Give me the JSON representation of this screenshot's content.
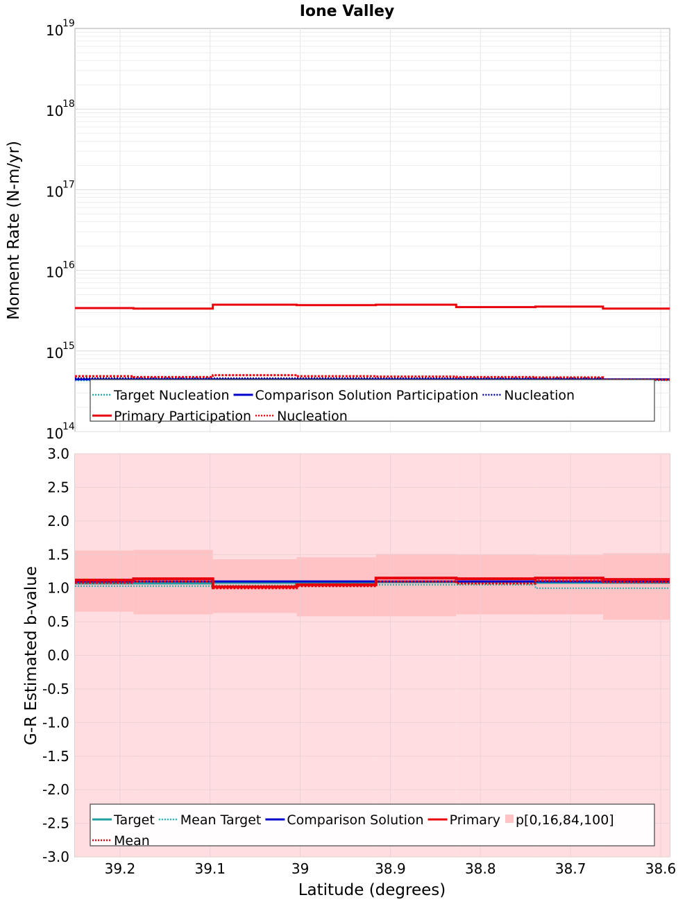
{
  "chart_data": [
    {
      "type": "line",
      "subtype": "step",
      "title": "Ione Valley",
      "xlabel": "",
      "ylabel": "Moment Rate (N-m/yr)",
      "yscale": "log",
      "ylim": [
        100000000000000.0,
        1e+19
      ],
      "xlim": [
        39.25,
        38.59
      ],
      "x_reversed": true,
      "grid": true,
      "y_tick_labels": [
        {
          "base": "10",
          "exp": "14",
          "value": 100000000000000.0
        },
        {
          "base": "10",
          "exp": "15",
          "value": 1000000000000000.0
        },
        {
          "base": "10",
          "exp": "16",
          "value": 1e+16
        },
        {
          "base": "10",
          "exp": "17",
          "value": 1e+17
        },
        {
          "base": "10",
          "exp": "18",
          "value": 1e+18
        },
        {
          "base": "10",
          "exp": "19",
          "value": 1e+19
        }
      ],
      "bin_edges": [
        39.25,
        39.185,
        39.097,
        39.004,
        38.916,
        38.827,
        38.739,
        38.664,
        38.59
      ],
      "series": [
        {
          "name": "Target Nucleation",
          "color": "#20b2aa",
          "style": "dotted",
          "width": 2,
          "values": [
            430000000000000.0,
            430000000000000.0,
            430000000000000.0,
            430000000000000.0,
            430000000000000.0,
            430000000000000.0,
            430000000000000.0,
            430000000000000.0
          ]
        },
        {
          "name": "Comparison Solution Participation",
          "color": "#0000cc",
          "style": "solid",
          "width": 3,
          "values": [
            445000000000000.0,
            445000000000000.0,
            445000000000000.0,
            445000000000000.0,
            445000000000000.0,
            445000000000000.0,
            445000000000000.0,
            445000000000000.0
          ]
        },
        {
          "name": "Nucleation",
          "color": "#00008b",
          "style": "dotted",
          "width": 2,
          "values": [
            460000000000000.0,
            460000000000000.0,
            460000000000000.0,
            460000000000000.0,
            460000000000000.0,
            460000000000000.0,
            460000000000000.0,
            445000000000000.0
          ]
        },
        {
          "name": "Primary Participation",
          "color": "#e8000b",
          "style": "solid",
          "width": 3,
          "values": [
            3400000000000000.0,
            3350000000000000.0,
            3750000000000000.0,
            3700000000000000.0,
            3750000000000000.0,
            3500000000000000.0,
            3550000000000000.0,
            3350000000000000.0
          ]
        },
        {
          "name": "Nucleation",
          "color": "#e8000b",
          "style": "dotted",
          "width": 3,
          "values": [
            485000000000000.0,
            475000000000000.0,
            500000000000000.0,
            485000000000000.0,
            480000000000000.0,
            475000000000000.0,
            470000000000000.0,
            440000000000000.0
          ]
        }
      ],
      "legend": {
        "placement": "bottom",
        "rows": [
          [
            {
              "label": "Target Nucleation",
              "color": "#20b2aa",
              "style": "dotted"
            },
            {
              "label": "Comparison Solution Participation",
              "color": "#0000cc",
              "style": "solid"
            },
            {
              "label": "Nucleation",
              "color": "#00008b",
              "style": "dotted"
            }
          ],
          [
            {
              "label": "Primary Participation",
              "color": "#e8000b",
              "style": "solid"
            },
            {
              "label": "Nucleation",
              "color": "#e8000b",
              "style": "dotted"
            }
          ]
        ]
      }
    },
    {
      "type": "line",
      "subtype": "step",
      "title": "",
      "xlabel": "Latitude (degrees)",
      "ylabel": "G-R Estimated b-value",
      "ylim": [
        -3.0,
        3.0
      ],
      "xlim": [
        39.25,
        38.59
      ],
      "x_reversed": true,
      "grid": true,
      "x_ticks": [
        39.2,
        39.1,
        39.0,
        38.9,
        38.8,
        38.7,
        38.6
      ],
      "x_tick_labels": [
        "39.2",
        "39.1",
        "39",
        "38.9",
        "38.8",
        "38.7",
        "38.6"
      ],
      "y_ticks": [
        3.0,
        2.5,
        2.0,
        1.5,
        1.0,
        0.5,
        0.0,
        -0.5,
        -1.0,
        -1.5,
        -2.0,
        -2.5,
        -3.0
      ],
      "y_tick_labels": [
        "3.0",
        "2.5",
        "2.0",
        "1.5",
        "1.0",
        "0.5",
        "0.0",
        "-0.5",
        "-1.0",
        "-1.5",
        "-2.0",
        "-2.5",
        "-3.0"
      ],
      "bin_edges": [
        39.25,
        39.185,
        39.097,
        39.004,
        38.916,
        38.827,
        38.739,
        38.664,
        38.59
      ],
      "bands": [
        {
          "name": "p[0,16,84,100] (0-100)",
          "color": "#ffdde0",
          "lower": [
            -3.0,
            -3.0,
            -3.0,
            -3.0,
            -3.0,
            -3.0,
            -3.0,
            -3.0
          ],
          "upper": [
            3.0,
            3.0,
            3.0,
            3.0,
            3.0,
            3.0,
            3.0,
            3.0
          ]
        },
        {
          "name": "p[0,16,84,100] (16-84)",
          "color": "#ffc3c6",
          "lower": [
            0.65,
            0.61,
            0.63,
            0.58,
            0.58,
            0.61,
            0.61,
            0.53
          ],
          "upper": [
            1.56,
            1.57,
            1.43,
            1.46,
            1.51,
            1.5,
            1.49,
            1.52
          ]
        }
      ],
      "series": [
        {
          "name": "Target",
          "color": "#20a0a0",
          "style": "solid",
          "width": 3,
          "values": [
            1.07,
            1.07,
            1.08,
            1.08,
            1.09,
            1.09,
            1.08,
            1.08
          ]
        },
        {
          "name": "Mean Target",
          "color": "#20b2aa",
          "style": "dotted",
          "width": 2,
          "values": [
            1.03,
            1.03,
            1.04,
            1.04,
            1.05,
            1.05,
            1.0,
            1.0
          ]
        },
        {
          "name": "Comparison Solution",
          "color": "#0000cc",
          "style": "solid",
          "width": 3,
          "values": [
            1.1,
            1.1,
            1.1,
            1.1,
            1.1,
            1.1,
            1.1,
            1.1
          ]
        },
        {
          "name": "Primary",
          "color": "#e8000b",
          "style": "solid",
          "width": 4,
          "values": [
            1.12,
            1.14,
            1.02,
            1.05,
            1.15,
            1.14,
            1.15,
            1.13
          ]
        },
        {
          "name": "Mean",
          "color": "#e8000b",
          "style": "dotted",
          "width": 3,
          "values": [
            1.08,
            1.1,
            1.0,
            1.03,
            1.1,
            1.07,
            1.11,
            1.09
          ]
        }
      ],
      "legend": {
        "placement": "bottom",
        "rows": [
          [
            {
              "label": "Target",
              "color": "#20a0a0",
              "style": "solid"
            },
            {
              "label": "Mean Target",
              "color": "#20b2aa",
              "style": "dotted"
            },
            {
              "label": "Comparison Solution",
              "color": "#0000cc",
              "style": "solid"
            },
            {
              "label": "Primary",
              "color": "#e8000b",
              "style": "solid"
            },
            {
              "label": "p[0,16,84,100]",
              "color": "#ffc3c6",
              "style": "patch"
            }
          ],
          [
            {
              "label": "Mean",
              "color": "#e8000b",
              "style": "dotted"
            }
          ]
        ]
      }
    }
  ]
}
